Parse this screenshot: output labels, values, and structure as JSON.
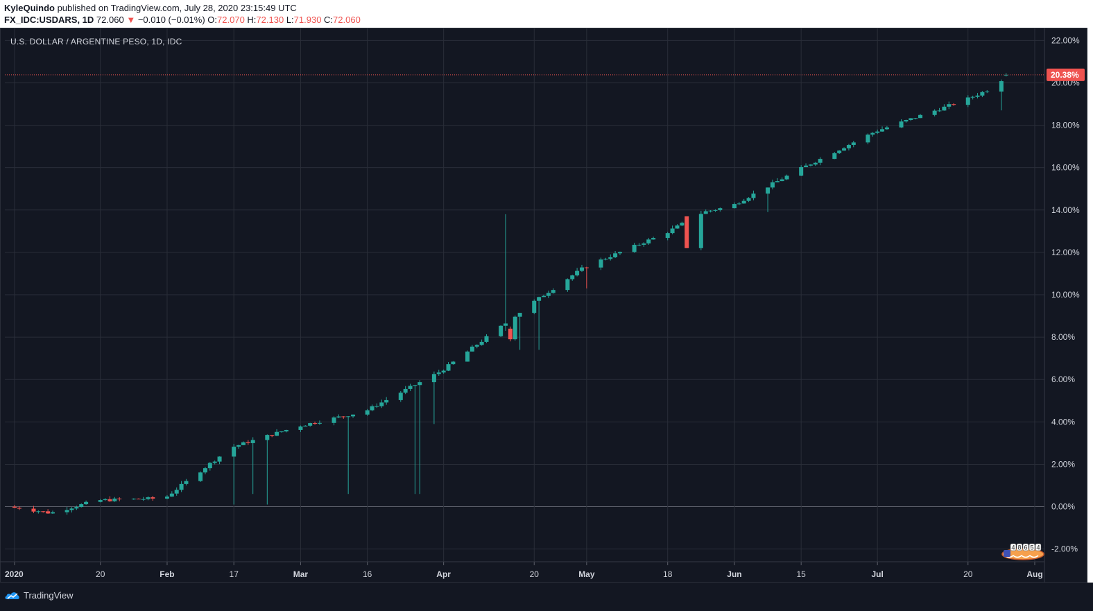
{
  "header": {
    "author": "KyleQuindo",
    "published_text": "published on TradingView.com, July 28, 2020 23:15:49 UTC",
    "symbol": "FX_IDC:USDARS, 1D",
    "last": "72.060",
    "change_arrow": "▼",
    "change": "−0.010 (−0.01%)",
    "o_label": "O:",
    "o_value": "72.070",
    "h_label": "H:",
    "h_value": "72.130",
    "l_label": "L:",
    "l_value": "71.930",
    "c_label": "C:",
    "c_value": "72.060"
  },
  "footer": {
    "brand": "TradingView",
    "logo_icon": "tradingview-cloud-icon"
  },
  "badge": {
    "digits": "48654",
    "icon": "flag-counter-icon"
  },
  "colors": {
    "background": "#131722",
    "grid": "#2a2e39",
    "up": "#26a69a",
    "down": "#ef5350",
    "text": "#d1d4dc",
    "price_line": "#ef5350"
  },
  "chart_data": {
    "type": "candlestick",
    "title": "U.S. DOLLAR / ARGENTINE PESO, 1D, IDC",
    "y_scale": "percent",
    "ylim": [
      -2.6,
      22.6
    ],
    "y_ticks": [
      22,
      20,
      18,
      16,
      14,
      12,
      10,
      8,
      6,
      4,
      2,
      0,
      -2
    ],
    "y_tick_labels": [
      "22.00%",
      "20.00%",
      "18.00%",
      "16.00%",
      "14.00%",
      "12.00%",
      "10.00%",
      "8.00%",
      "6.00%",
      "4.00%",
      "2.00%",
      "0.00%",
      "-2.00%"
    ],
    "x_range": [
      "2020-01-02",
      "2020-08-03"
    ],
    "x_ticks": [
      {
        "date": "2020-01-02",
        "label": "2020"
      },
      {
        "date": "2020-01-20",
        "label": "20"
      },
      {
        "date": "2020-02-03",
        "label": "Feb"
      },
      {
        "date": "2020-02-17",
        "label": "17"
      },
      {
        "date": "2020-03-02",
        "label": "Mar"
      },
      {
        "date": "2020-03-16",
        "label": "16"
      },
      {
        "date": "2020-04-01",
        "label": "Apr"
      },
      {
        "date": "2020-04-20",
        "label": "20"
      },
      {
        "date": "2020-05-01",
        "label": "May"
      },
      {
        "date": "2020-05-18",
        "label": "18"
      },
      {
        "date": "2020-06-01",
        "label": "Jun"
      },
      {
        "date": "2020-06-15",
        "label": "15"
      },
      {
        "date": "2020-07-01",
        "label": "Jul"
      },
      {
        "date": "2020-07-20",
        "label": "20"
      },
      {
        "date": "2020-08-03",
        "label": "Aug"
      }
    ],
    "last_value": 20.38,
    "last_value_label": "20.38%",
    "grid": true,
    "legend": "none",
    "anchors": [
      [
        "2020-01-02",
        0.0
      ],
      [
        "2020-01-10",
        -0.3
      ],
      [
        "2020-01-20",
        0.3
      ],
      [
        "2020-02-03",
        0.4
      ],
      [
        "2020-02-17",
        2.8
      ],
      [
        "2020-03-02",
        3.8
      ],
      [
        "2020-03-16",
        4.5
      ],
      [
        "2020-04-01",
        6.4
      ],
      [
        "2020-04-13",
        8.4
      ],
      [
        "2020-04-20",
        9.6
      ],
      [
        "2020-05-01",
        11.3
      ],
      [
        "2020-05-18",
        12.9
      ],
      [
        "2020-05-26",
        13.9
      ],
      [
        "2020-06-01",
        14.2
      ],
      [
        "2020-06-15",
        15.9
      ],
      [
        "2020-07-01",
        17.7
      ],
      [
        "2020-07-20",
        19.2
      ],
      [
        "2020-07-27",
        19.9
      ],
      [
        "2020-07-28",
        20.38
      ]
    ],
    "special_candles": [
      {
        "date": "2020-04-14",
        "low": 8.3,
        "high": 13.8
      },
      {
        "date": "2020-04-15",
        "open": 8.4,
        "close": 7.9,
        "low": 7.8,
        "high": 8.5
      },
      {
        "date": "2020-03-12",
        "low": 0.6
      },
      {
        "date": "2020-03-26",
        "low": 0.6
      },
      {
        "date": "2020-03-27",
        "low": 0.6
      },
      {
        "date": "2020-03-30",
        "low": 3.9
      },
      {
        "date": "2020-02-17",
        "low": 0.1
      },
      {
        "date": "2020-02-21",
        "low": 0.6
      },
      {
        "date": "2020-02-24",
        "low": 0.1
      },
      {
        "date": "2020-05-22",
        "open": 13.7,
        "close": 12.2
      },
      {
        "date": "2020-07-27",
        "low": 18.7
      },
      {
        "date": "2020-04-17",
        "low": 7.4
      },
      {
        "date": "2020-06-08",
        "low": 13.9
      },
      {
        "date": "2020-04-21",
        "low": 7.4
      },
      {
        "date": "2020-05-01",
        "low": 10.3
      }
    ]
  }
}
